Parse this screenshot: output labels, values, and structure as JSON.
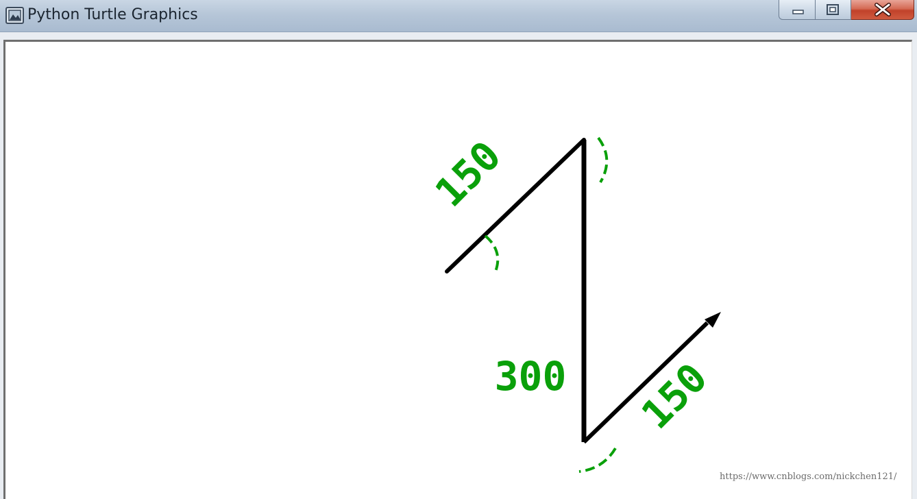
{
  "window": {
    "title": "Python Turtle Graphics",
    "icon": "turtle-app-icon",
    "controls": [
      "minimize-icon",
      "maximize-icon",
      "close-icon"
    ]
  },
  "canvas": {
    "background": "#ffffff",
    "line_color": "#000000",
    "annotation_color": "#0aa00a",
    "labels": {
      "first_segment": "150",
      "middle_segment": "300",
      "last_segment": "150"
    }
  },
  "watermark": "https://www.cnblogs.com/nickchen121/"
}
